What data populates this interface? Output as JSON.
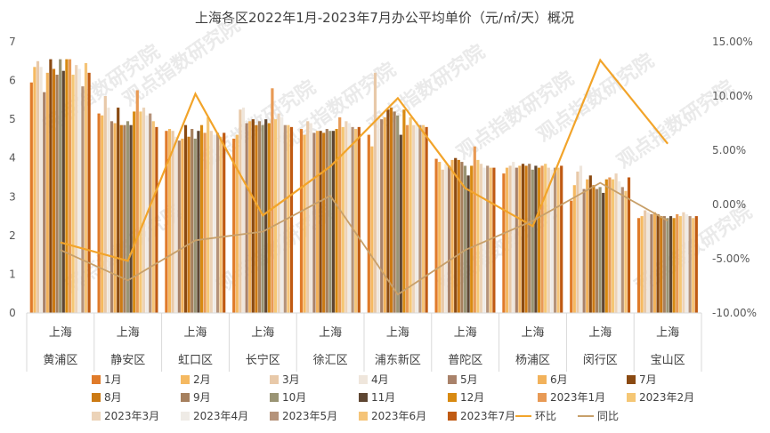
{
  "chart_data": {
    "type": "bar",
    "title": "上海各区2022年1月-2023年7月办公平均单价（元/㎡/天）概况",
    "watermark": "观点指数研究院",
    "categories": [
      {
        "top": "上海",
        "bottom": "黄浦区"
      },
      {
        "top": "上海",
        "bottom": "静安区"
      },
      {
        "top": "上海",
        "bottom": "虹口区"
      },
      {
        "top": "上海",
        "bottom": "长宁区"
      },
      {
        "top": "上海",
        "bottom": "徐汇区"
      },
      {
        "top": "上海",
        "bottom": "浦东新区"
      },
      {
        "top": "上海",
        "bottom": "普陀区"
      },
      {
        "top": "上海",
        "bottom": "杨浦区"
      },
      {
        "top": "上海",
        "bottom": "闵行区"
      },
      {
        "top": "上海",
        "bottom": "宝山区"
      }
    ],
    "y_left": {
      "min": 0,
      "max": 7,
      "ticks": [
        "0",
        "1",
        "2",
        "3",
        "4",
        "5",
        "6",
        "7"
      ]
    },
    "y_right": {
      "min": -10,
      "max": 15,
      "ticks": [
        "-10.00%",
        "-5.00%",
        "0.00%",
        "5.00%",
        "10.00%",
        "15.00%"
      ]
    },
    "grid": false,
    "legend_position": "bottom",
    "series": [
      {
        "name": "1月",
        "color": "#e07b2a",
        "values": [
          5.95,
          5.15,
          4.7,
          4.5,
          4.75,
          4.6,
          3.98,
          3.6,
          2.9,
          2.45
        ]
      },
      {
        "name": "2月",
        "color": "#f5b961",
        "values": [
          6.35,
          5.1,
          4.75,
          4.6,
          4.6,
          4.3,
          3.9,
          3.75,
          3.3,
          2.5
        ]
      },
      {
        "name": "3月",
        "color": "#e8c9a9",
        "values": [
          6.5,
          5.6,
          4.7,
          5.25,
          4.95,
          6.2,
          3.7,
          3.8,
          3.65,
          2.65
        ]
      },
      {
        "name": "4月",
        "color": "#efe6dc",
        "values": [
          6.35,
          5.3,
          4.55,
          5.3,
          4.9,
          5.05,
          3.85,
          3.9,
          3.8,
          2.6
        ]
      },
      {
        "name": "5月",
        "color": "#a9826a",
        "values": [
          5.7,
          4.95,
          4.45,
          4.9,
          4.65,
          5.0,
          3.8,
          3.75,
          3.2,
          2.55
        ]
      },
      {
        "name": "6月",
        "color": "#f2b25b",
        "values": [
          6.2,
          4.9,
          4.5,
          4.95,
          4.7,
          5.05,
          3.95,
          3.8,
          3.45,
          2.6
        ]
      },
      {
        "name": "7月",
        "color": "#8a4a12",
        "values": [
          6.55,
          5.3,
          4.85,
          5.0,
          4.7,
          5.25,
          4.0,
          3.85,
          3.55,
          2.55
        ]
      },
      {
        "name": "8月",
        "color": "#cc7a14",
        "values": [
          6.3,
          4.85,
          4.55,
          4.85,
          4.65,
          5.3,
          3.95,
          3.8,
          3.3,
          2.5
        ]
      },
      {
        "name": "9月",
        "color": "#a6805e",
        "values": [
          6.15,
          4.85,
          4.75,
          4.95,
          4.75,
          5.2,
          3.9,
          3.85,
          3.2,
          2.5
        ]
      },
      {
        "name": "10月",
        "color": "#9a9474",
        "values": [
          6.55,
          4.95,
          4.5,
          4.85,
          4.7,
          5.1,
          3.8,
          3.7,
          3.25,
          2.45
        ]
      },
      {
        "name": "11月",
        "color": "#5e4632",
        "values": [
          6.25,
          4.85,
          4.7,
          5.0,
          4.7,
          4.6,
          3.55,
          3.8,
          3.1,
          2.5
        ]
      },
      {
        "name": "12月",
        "color": "#d88a12",
        "values": [
          6.55,
          5.2,
          4.85,
          4.9,
          4.75,
          5.25,
          3.8,
          3.75,
          3.45,
          2.45
        ]
      },
      {
        "name": "2023年1月",
        "color": "#e89a55",
        "values": [
          6.55,
          5.75,
          4.65,
          5.8,
          5.05,
          4.85,
          4.3,
          3.8,
          3.5,
          2.55
        ]
      },
      {
        "name": "2023年2月",
        "color": "#f5c775",
        "values": [
          6.15,
          5.2,
          5.05,
          5.0,
          4.8,
          5.05,
          3.95,
          3.85,
          3.45,
          2.5
        ]
      },
      {
        "name": "2023年3月",
        "color": "#ecd3b8",
        "values": [
          6.4,
          5.3,
          4.7,
          5.15,
          4.95,
          4.85,
          3.85,
          3.75,
          3.6,
          2.6
        ]
      },
      {
        "name": "2023年4月",
        "color": "#efebe6",
        "values": [
          6.3,
          5.1,
          4.6,
          5.05,
          4.9,
          4.95,
          3.75,
          3.7,
          3.4,
          2.55
        ]
      },
      {
        "name": "2023年5月",
        "color": "#b5937a",
        "values": [
          5.85,
          5.15,
          4.65,
          4.85,
          4.8,
          4.85,
          3.8,
          3.75,
          3.25,
          2.5
        ]
      },
      {
        "name": "2023年6月",
        "color": "#f5c478",
        "values": [
          6.45,
          4.95,
          4.55,
          4.85,
          4.75,
          4.85,
          3.75,
          3.75,
          3.15,
          2.45
        ]
      },
      {
        "name": "2023年7月",
        "color": "#c05a12",
        "values": [
          6.2,
          4.8,
          4.65,
          4.8,
          4.8,
          4.8,
          3.75,
          3.8,
          3.5,
          2.5
        ]
      }
    ],
    "lines": [
      {
        "name": "环比",
        "color": "#f2a42a",
        "axis": "right",
        "values": [
          -3.5,
          -5.2,
          10.2,
          -1.0,
          3.5,
          9.8,
          1.5,
          -2.0,
          13.3,
          5.6
        ]
      },
      {
        "name": "同比",
        "color": "#c8a06a",
        "axis": "right",
        "values": [
          -4.2,
          -7.0,
          -3.3,
          -2.5,
          0.8,
          -8.3,
          -4.2,
          -1.5,
          2.0,
          -1.5
        ]
      }
    ]
  }
}
